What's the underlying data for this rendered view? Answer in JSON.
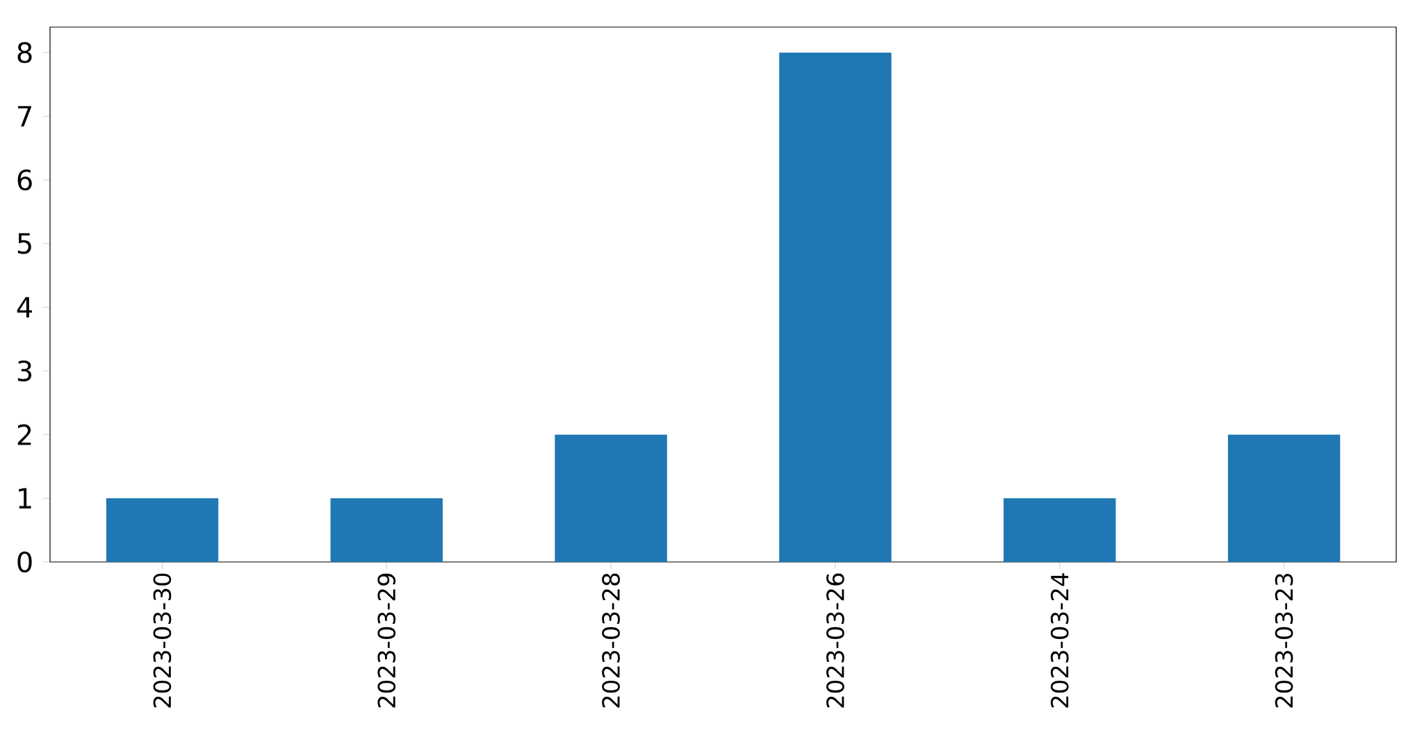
{
  "chart_data": {
    "type": "bar",
    "categories": [
      "2023-03-30",
      "2023-03-29",
      "2023-03-28",
      "2023-03-26",
      "2023-03-24",
      "2023-03-23"
    ],
    "values": [
      1,
      1,
      2,
      8,
      1,
      2
    ],
    "color": "#1f77b4",
    "ylim": [
      0,
      8.4
    ],
    "yticks": [
      0,
      1,
      2,
      3,
      4,
      5,
      6,
      7,
      8
    ],
    "grid": false
  }
}
